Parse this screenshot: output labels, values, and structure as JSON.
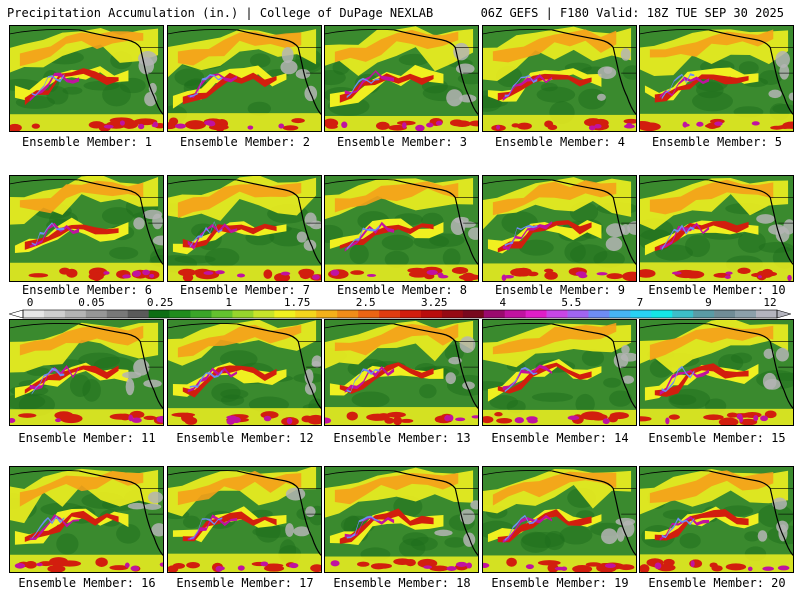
{
  "header": {
    "left": "Precipitation Accumulation (in.) | College of DuPage NEXLAB",
    "right": "06Z GEFS | F180 Valid: 18Z TUE SEP 30 2025"
  },
  "caption_prefix": "Ensemble Member:",
  "members": [
    {
      "id": 1,
      "label": "1"
    },
    {
      "id": 2,
      "label": "2"
    },
    {
      "id": 3,
      "label": "3"
    },
    {
      "id": 4,
      "label": "4"
    },
    {
      "id": 5,
      "label": "5"
    },
    {
      "id": 6,
      "label": "6"
    },
    {
      "id": 7,
      "label": "7"
    },
    {
      "id": 8,
      "label": "8"
    },
    {
      "id": 9,
      "label": "9"
    },
    {
      "id": 10,
      "label": "10"
    },
    {
      "id": 11,
      "label": "11"
    },
    {
      "id": 12,
      "label": "12"
    },
    {
      "id": 13,
      "label": "13"
    },
    {
      "id": 14,
      "label": "14"
    },
    {
      "id": 15,
      "label": "15"
    },
    {
      "id": 16,
      "label": "16"
    },
    {
      "id": 17,
      "label": "17"
    },
    {
      "id": 18,
      "label": "18"
    },
    {
      "id": 19,
      "label": "19"
    },
    {
      "id": 20,
      "label": "20"
    }
  ],
  "colorbar": {
    "tick_labels": [
      "0",
      "0.05",
      "0.25",
      "1",
      "1.75",
      "2.5",
      "3.25",
      "4",
      "5.5",
      "7",
      "9",
      "12"
    ],
    "colors": [
      "#e6e6e6",
      "#cfcfcf",
      "#b4b4b4",
      "#969696",
      "#787878",
      "#5a5a5a",
      "#0d6e14",
      "#1f8c1c",
      "#3aa528",
      "#63c22e",
      "#96d42c",
      "#c8e42a",
      "#f0f020",
      "#f5d51c",
      "#f5b01a",
      "#f08c18",
      "#eb6414",
      "#e03c10",
      "#d21e0e",
      "#b90c0c",
      "#960a14",
      "#78081e",
      "#9a0a6e",
      "#c012a0",
      "#e01ec8",
      "#c846e6",
      "#a064f0",
      "#6e8cf5",
      "#46b4f5",
      "#28d2f5",
      "#14e6e6",
      "#3cbec8",
      "#5a9ba5",
      "#708c96",
      "#8ca0aa",
      "#b4b4be"
    ]
  },
  "palette": {
    "green": "#3a8a2e",
    "dark_green": "#1e6e1c",
    "yellow": "#f0f020",
    "orange": "#f5a01a",
    "red": "#d21e0e",
    "magenta": "#c012a0",
    "blue": "#6e8cf5",
    "gray": "#b4b4b4",
    "coast": "#000000"
  }
}
